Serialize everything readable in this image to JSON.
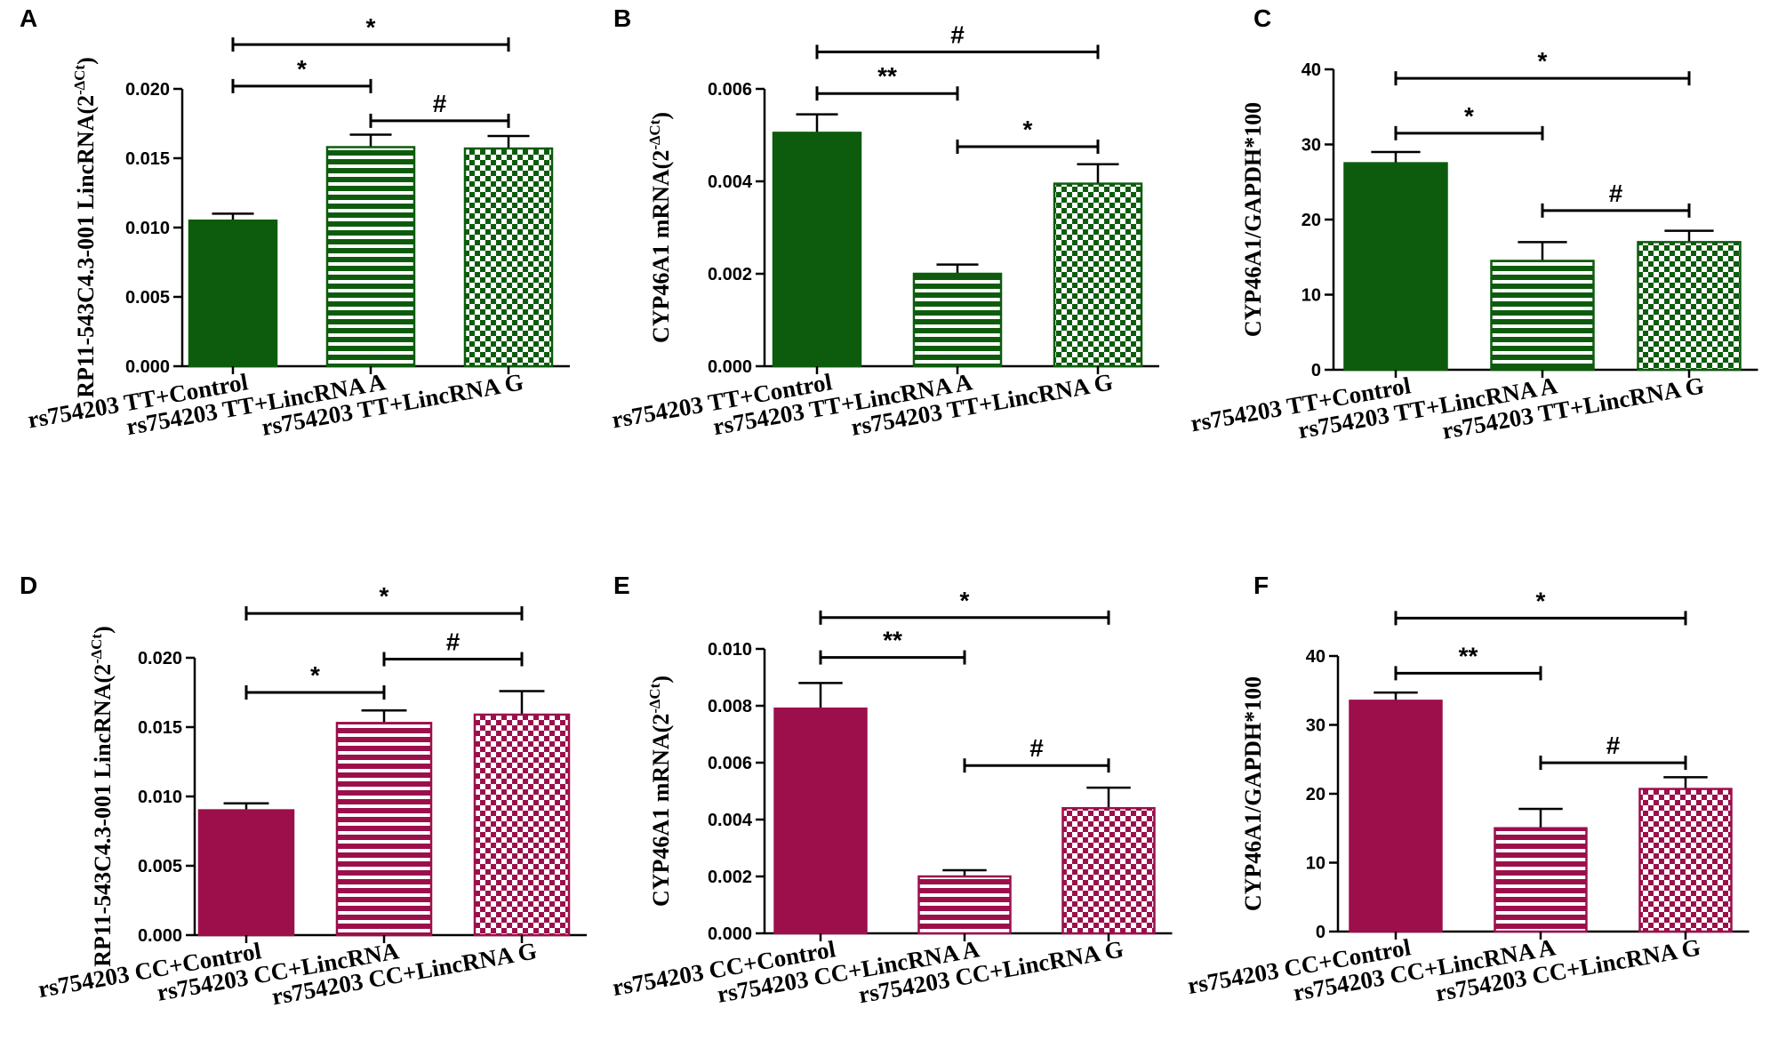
{
  "colors": {
    "green": "#0d5c0d",
    "crimson": "#9c0f4b",
    "axis": "#000000"
  },
  "chart_data": [
    {
      "panel": "A",
      "type": "bar",
      "ylabel": "RP11-543C4.3-001 LincRNA(2",
      "ysup": "-∆Ct",
      "ylabel_tail": ")",
      "categories": [
        "rs754203 TT+Control",
        "rs754203 TT+LincRNA A",
        "rs754203 TT+LincRNA G"
      ],
      "values": [
        0.0105,
        0.0158,
        0.0157
      ],
      "errors": [
        0.0005,
        0.0009,
        0.0009
      ],
      "ylim": [
        0,
        0.02
      ],
      "yticks": [
        "0.000",
        "0.005",
        "0.010",
        "0.015",
        "0.020"
      ],
      "color": "green",
      "significance": [
        {
          "from": 0,
          "to": 1,
          "label": "*",
          "y": 0.0202
        },
        {
          "from": 1,
          "to": 2,
          "label": "#",
          "y": 0.0177
        },
        {
          "from": 0,
          "to": 2,
          "label": "*",
          "y": 0.0232
        }
      ]
    },
    {
      "panel": "B",
      "type": "bar",
      "ylabel": "CYP46A1 mRNA(2",
      "ysup": "-∆Ct",
      "ylabel_tail": ")",
      "categories": [
        "rs754203 TT+Control",
        "rs754203 TT+LincRNA A",
        "rs754203 TT+LincRNA G"
      ],
      "values": [
        0.00505,
        0.002,
        0.00395
      ],
      "errors": [
        0.0004,
        0.0002,
        0.00042
      ],
      "ylim": [
        0,
        0.006
      ],
      "yticks": [
        "0.000",
        "0.002",
        "0.004",
        "0.006"
      ],
      "color": "green",
      "significance": [
        {
          "from": 0,
          "to": 1,
          "label": "**",
          "y": 0.0059
        },
        {
          "from": 1,
          "to": 2,
          "label": "*",
          "y": 0.00475
        },
        {
          "from": 0,
          "to": 2,
          "label": "#",
          "y": 0.0068
        }
      ]
    },
    {
      "panel": "C",
      "type": "bar",
      "ylabel": "CYP46A1/GAPDH*100",
      "ysup": "",
      "ylabel_tail": "",
      "categories": [
        "rs754203 TT+Control",
        "rs754203 TT+LincRNA A",
        "rs754203 TT+LincRNA G"
      ],
      "values": [
        27.5,
        14.5,
        17.0
      ],
      "errors": [
        1.5,
        2.5,
        1.5
      ],
      "ylim": [
        0,
        40
      ],
      "yticks": [
        "0",
        "10",
        "20",
        "30",
        "40"
      ],
      "color": "green",
      "significance": [
        {
          "from": 0,
          "to": 1,
          "label": "*",
          "y": 31.5
        },
        {
          "from": 1,
          "to": 2,
          "label": "#",
          "y": 21.2
        },
        {
          "from": 0,
          "to": 2,
          "label": "*",
          "y": 38.8
        }
      ]
    },
    {
      "panel": "D",
      "type": "bar",
      "ylabel": "RP11-543C4.3-001 LincRNA(2",
      "ysup": "-∆Ct",
      "ylabel_tail": ")",
      "categories": [
        "rs754203 CC+Control",
        "rs754203 CC+LincRNA",
        "rs754203 CC+LincRNA G"
      ],
      "values": [
        0.009,
        0.0153,
        0.0159
      ],
      "errors": [
        0.0005,
        0.0009,
        0.0017
      ],
      "ylim": [
        0,
        0.02
      ],
      "yticks": [
        "0.000",
        "0.005",
        "0.010",
        "0.015",
        "0.020"
      ],
      "color": "crimson",
      "significance": [
        {
          "from": 0,
          "to": 1,
          "label": "*",
          "y": 0.0175
        },
        {
          "from": 1,
          "to": 2,
          "label": "#",
          "y": 0.0199
        },
        {
          "from": 0,
          "to": 2,
          "label": "*",
          "y": 0.0232
        }
      ]
    },
    {
      "panel": "E",
      "type": "bar",
      "ylabel": "CYP46A1 mRNA(2",
      "ysup": "-∆Ct",
      "ylabel_tail": ")",
      "categories": [
        "rs754203 CC+Control",
        "rs754203 CC+LincRNA A",
        "rs754203 CC+LincRNA G"
      ],
      "values": [
        0.0079,
        0.002,
        0.0044
      ],
      "errors": [
        0.0009,
        0.00022,
        0.00072
      ],
      "ylim": [
        0,
        0.01
      ],
      "yticks": [
        "0.000",
        "0.002",
        "0.004",
        "0.006",
        "0.008",
        "0.010"
      ],
      "color": "crimson",
      "significance": [
        {
          "from": 0,
          "to": 1,
          "label": "**",
          "y": 0.0097
        },
        {
          "from": 1,
          "to": 2,
          "label": "#",
          "y": 0.0059
        },
        {
          "from": 0,
          "to": 2,
          "label": "*",
          "y": 0.0111
        }
      ]
    },
    {
      "panel": "F",
      "type": "bar",
      "ylabel": "CYP46A1/GAPDH*100",
      "ysup": "",
      "ylabel_tail": "",
      "categories": [
        "rs754203 CC+Control",
        "rs754203 CC+LincRNA A",
        "rs754203 CC+LincRNA G"
      ],
      "values": [
        33.5,
        15.0,
        20.7
      ],
      "errors": [
        1.2,
        2.8,
        1.7
      ],
      "ylim": [
        0,
        40
      ],
      "yticks": [
        "0",
        "10",
        "20",
        "30",
        "40"
      ],
      "color": "crimson",
      "significance": [
        {
          "from": 0,
          "to": 1,
          "label": "**",
          "y": 37.5
        },
        {
          "from": 1,
          "to": 2,
          "label": "#",
          "y": 24.5
        },
        {
          "from": 0,
          "to": 2,
          "label": "*",
          "y": 45.5
        }
      ]
    }
  ]
}
